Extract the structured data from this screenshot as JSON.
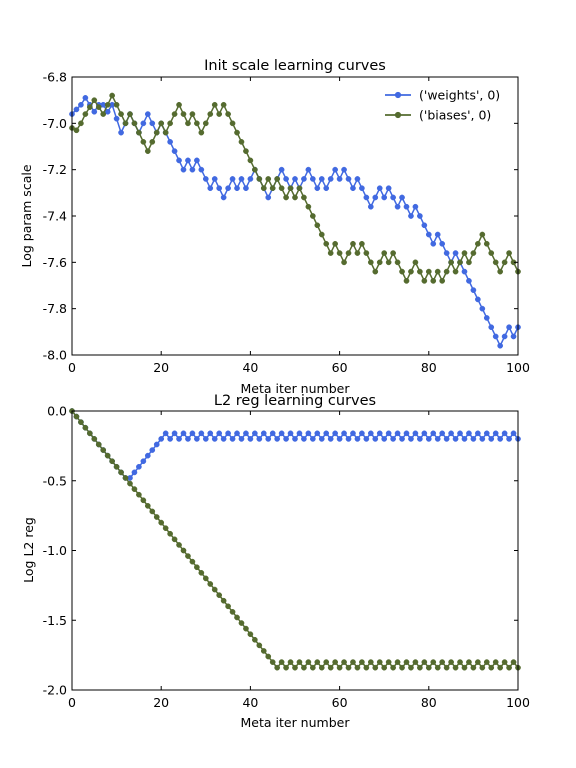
{
  "chart_data": [
    {
      "type": "line",
      "title": "Init scale learning curves",
      "xlabel": "Meta iter number",
      "ylabel": "Log param scale",
      "xlim": [
        0,
        100
      ],
      "ylim": [
        -8.0,
        -6.8
      ],
      "xticks": [
        0,
        20,
        40,
        60,
        80,
        100
      ],
      "xtick_labels": [
        "0",
        "20",
        "40",
        "60",
        "80",
        "100"
      ],
      "yticks": [
        -8.0,
        -7.8,
        -7.6,
        -7.4,
        -7.2,
        -7.0,
        -6.8
      ],
      "ytick_labels": [
        "-8.0",
        "-7.8",
        "-7.6",
        "-7.4",
        "-7.2",
        "-7.0",
        "-6.8"
      ],
      "grid": false,
      "legend": "top-right",
      "series": [
        {
          "name": "('weights', 0)",
          "color": "#4169e1",
          "marker": "circle",
          "x": [
            0,
            1,
            2,
            3,
            4,
            5,
            6,
            7,
            8,
            9,
            10,
            11,
            12,
            13,
            14,
            15,
            16,
            17,
            18,
            19,
            20,
            21,
            22,
            23,
            24,
            25,
            26,
            27,
            28,
            29,
            30,
            31,
            32,
            33,
            34,
            35,
            36,
            37,
            38,
            39,
            40,
            41,
            42,
            43,
            44,
            45,
            46,
            47,
            48,
            49,
            50,
            51,
            52,
            53,
            54,
            55,
            56,
            57,
            58,
            59,
            60,
            61,
            62,
            63,
            64,
            65,
            66,
            67,
            68,
            69,
            70,
            71,
            72,
            73,
            74,
            75,
            76,
            77,
            78,
            79,
            80,
            81,
            82,
            83,
            84,
            85,
            86,
            87,
            88,
            89,
            90,
            91,
            92,
            93,
            94,
            95,
            96,
            97,
            98,
            99,
            100
          ],
          "values": [
            -6.96,
            -6.94,
            -6.92,
            -6.89,
            -6.92,
            -6.95,
            -6.92,
            -6.92,
            -6.95,
            -6.92,
            -6.98,
            -7.04,
            -7.0,
            -6.96,
            -7.0,
            -7.04,
            -7.0,
            -6.96,
            -7.0,
            -7.04,
            -7.0,
            -7.04,
            -7.08,
            -7.12,
            -7.16,
            -7.2,
            -7.16,
            -7.2,
            -7.16,
            -7.2,
            -7.24,
            -7.28,
            -7.24,
            -7.28,
            -7.32,
            -7.28,
            -7.24,
            -7.28,
            -7.24,
            -7.28,
            -7.24,
            -7.2,
            -7.24,
            -7.28,
            -7.32,
            -7.28,
            -7.24,
            -7.2,
            -7.24,
            -7.28,
            -7.24,
            -7.28,
            -7.24,
            -7.2,
            -7.24,
            -7.28,
            -7.24,
            -7.28,
            -7.24,
            -7.2,
            -7.24,
            -7.2,
            -7.24,
            -7.28,
            -7.24,
            -7.28,
            -7.32,
            -7.36,
            -7.32,
            -7.28,
            -7.32,
            -7.28,
            -7.32,
            -7.36,
            -7.32,
            -7.36,
            -7.4,
            -7.36,
            -7.4,
            -7.44,
            -7.48,
            -7.52,
            -7.48,
            -7.52,
            -7.56,
            -7.6,
            -7.56,
            -7.6,
            -7.64,
            -7.68,
            -7.72,
            -7.76,
            -7.8,
            -7.84,
            -7.88,
            -7.92,
            -7.96,
            -7.92,
            -7.88,
            -7.92,
            -7.88
          ]
        },
        {
          "name": "('biases', 0)",
          "color": "#556b2f",
          "marker": "circle",
          "x": [
            0,
            1,
            2,
            3,
            4,
            5,
            6,
            7,
            8,
            9,
            10,
            11,
            12,
            13,
            14,
            15,
            16,
            17,
            18,
            19,
            20,
            21,
            22,
            23,
            24,
            25,
            26,
            27,
            28,
            29,
            30,
            31,
            32,
            33,
            34,
            35,
            36,
            37,
            38,
            39,
            40,
            41,
            42,
            43,
            44,
            45,
            46,
            47,
            48,
            49,
            50,
            51,
            52,
            53,
            54,
            55,
            56,
            57,
            58,
            59,
            60,
            61,
            62,
            63,
            64,
            65,
            66,
            67,
            68,
            69,
            70,
            71,
            72,
            73,
            74,
            75,
            76,
            77,
            78,
            79,
            80,
            81,
            82,
            83,
            84,
            85,
            86,
            87,
            88,
            89,
            90,
            91,
            92,
            93,
            94,
            95,
            96,
            97,
            98,
            99,
            100
          ],
          "values": [
            -7.02,
            -7.03,
            -7.0,
            -6.96,
            -6.93,
            -6.9,
            -6.93,
            -6.96,
            -6.92,
            -6.88,
            -6.92,
            -6.96,
            -7.0,
            -6.96,
            -7.0,
            -7.04,
            -7.08,
            -7.12,
            -7.08,
            -7.04,
            -7.0,
            -7.04,
            -7.0,
            -6.96,
            -6.92,
            -6.96,
            -7.0,
            -6.96,
            -7.0,
            -7.04,
            -7.0,
            -6.96,
            -6.92,
            -6.96,
            -6.92,
            -6.96,
            -7.0,
            -7.04,
            -7.08,
            -7.12,
            -7.16,
            -7.2,
            -7.24,
            -7.28,
            -7.24,
            -7.28,
            -7.24,
            -7.28,
            -7.32,
            -7.28,
            -7.32,
            -7.28,
            -7.32,
            -7.36,
            -7.4,
            -7.44,
            -7.48,
            -7.52,
            -7.56,
            -7.52,
            -7.56,
            -7.6,
            -7.56,
            -7.52,
            -7.56,
            -7.52,
            -7.56,
            -7.6,
            -7.64,
            -7.6,
            -7.56,
            -7.6,
            -7.56,
            -7.6,
            -7.64,
            -7.68,
            -7.64,
            -7.6,
            -7.64,
            -7.68,
            -7.64,
            -7.68,
            -7.64,
            -7.68,
            -7.64,
            -7.6,
            -7.64,
            -7.6,
            -7.56,
            -7.6,
            -7.56,
            -7.52,
            -7.48,
            -7.52,
            -7.56,
            -7.6,
            -7.64,
            -7.6,
            -7.56,
            -7.6,
            -7.64
          ]
        }
      ]
    },
    {
      "type": "line",
      "title": "L2 reg learning curves",
      "xlabel": "Meta iter number",
      "ylabel": "Log L2 reg",
      "xlim": [
        0,
        100
      ],
      "ylim": [
        -2.0,
        0.0
      ],
      "xticks": [
        0,
        20,
        40,
        60,
        80,
        100
      ],
      "xtick_labels": [
        "0",
        "20",
        "40",
        "60",
        "80",
        "100"
      ],
      "yticks": [
        -2.0,
        -1.5,
        -1.0,
        -0.5,
        0.0
      ],
      "ytick_labels": [
        "-2.0",
        "-1.5",
        "-1.0",
        "-0.5",
        "0.0"
      ],
      "grid": false,
      "legend": "none",
      "series": [
        {
          "color": "#4169e1",
          "marker": "circle",
          "x": [
            0,
            1,
            2,
            3,
            4,
            5,
            6,
            7,
            8,
            9,
            10,
            11,
            12,
            13,
            14,
            15,
            16,
            17,
            18,
            19,
            20,
            21,
            22,
            23,
            24,
            25,
            26,
            27,
            28,
            29,
            30,
            31,
            32,
            33,
            34,
            35,
            36,
            37,
            38,
            39,
            40,
            41,
            42,
            43,
            44,
            45,
            46,
            47,
            48,
            49,
            50,
            51,
            52,
            53,
            54,
            55,
            56,
            57,
            58,
            59,
            60,
            61,
            62,
            63,
            64,
            65,
            66,
            67,
            68,
            69,
            70,
            71,
            72,
            73,
            74,
            75,
            76,
            77,
            78,
            79,
            80,
            81,
            82,
            83,
            84,
            85,
            86,
            87,
            88,
            89,
            90,
            91,
            92,
            93,
            94,
            95,
            96,
            97,
            98,
            99,
            100
          ],
          "values": [
            0.0,
            -0.04,
            -0.08,
            -0.12,
            -0.16,
            -0.2,
            -0.24,
            -0.28,
            -0.32,
            -0.36,
            -0.4,
            -0.44,
            -0.48,
            -0.48,
            -0.44,
            -0.4,
            -0.36,
            -0.32,
            -0.28,
            -0.24,
            -0.2,
            -0.16,
            -0.2,
            -0.16,
            -0.2,
            -0.16,
            -0.2,
            -0.16,
            -0.2,
            -0.16,
            -0.2,
            -0.16,
            -0.2,
            -0.16,
            -0.2,
            -0.16,
            -0.2,
            -0.16,
            -0.2,
            -0.16,
            -0.2,
            -0.16,
            -0.2,
            -0.16,
            -0.2,
            -0.16,
            -0.2,
            -0.16,
            -0.2,
            -0.16,
            -0.2,
            -0.16,
            -0.2,
            -0.16,
            -0.2,
            -0.16,
            -0.2,
            -0.16,
            -0.2,
            -0.16,
            -0.2,
            -0.16,
            -0.2,
            -0.16,
            -0.2,
            -0.16,
            -0.2,
            -0.16,
            -0.2,
            -0.16,
            -0.2,
            -0.16,
            -0.2,
            -0.16,
            -0.2,
            -0.16,
            -0.2,
            -0.16,
            -0.2,
            -0.16,
            -0.2,
            -0.16,
            -0.2,
            -0.16,
            -0.2,
            -0.16,
            -0.2,
            -0.16,
            -0.2,
            -0.16,
            -0.2,
            -0.16,
            -0.2,
            -0.16,
            -0.2,
            -0.16,
            -0.2,
            -0.16,
            -0.2,
            -0.16,
            -0.2
          ]
        },
        {
          "color": "#556b2f",
          "marker": "circle",
          "x": [
            0,
            1,
            2,
            3,
            4,
            5,
            6,
            7,
            8,
            9,
            10,
            11,
            12,
            13,
            14,
            15,
            16,
            17,
            18,
            19,
            20,
            21,
            22,
            23,
            24,
            25,
            26,
            27,
            28,
            29,
            30,
            31,
            32,
            33,
            34,
            35,
            36,
            37,
            38,
            39,
            40,
            41,
            42,
            43,
            44,
            45,
            46,
            47,
            48,
            49,
            50,
            51,
            52,
            53,
            54,
            55,
            56,
            57,
            58,
            59,
            60,
            61,
            62,
            63,
            64,
            65,
            66,
            67,
            68,
            69,
            70,
            71,
            72,
            73,
            74,
            75,
            76,
            77,
            78,
            79,
            80,
            81,
            82,
            83,
            84,
            85,
            86,
            87,
            88,
            89,
            90,
            91,
            92,
            93,
            94,
            95,
            96,
            97,
            98,
            99,
            100
          ],
          "values": [
            0.0,
            -0.04,
            -0.08,
            -0.12,
            -0.16,
            -0.2,
            -0.24,
            -0.28,
            -0.32,
            -0.36,
            -0.4,
            -0.44,
            -0.48,
            -0.52,
            -0.56,
            -0.6,
            -0.64,
            -0.68,
            -0.72,
            -0.76,
            -0.8,
            -0.84,
            -0.88,
            -0.92,
            -0.96,
            -1.0,
            -1.04,
            -1.08,
            -1.12,
            -1.16,
            -1.2,
            -1.24,
            -1.28,
            -1.32,
            -1.36,
            -1.4,
            -1.44,
            -1.48,
            -1.52,
            -1.56,
            -1.6,
            -1.64,
            -1.68,
            -1.72,
            -1.76,
            -1.8,
            -1.84,
            -1.8,
            -1.84,
            -1.8,
            -1.84,
            -1.8,
            -1.84,
            -1.8,
            -1.84,
            -1.8,
            -1.84,
            -1.8,
            -1.84,
            -1.8,
            -1.84,
            -1.8,
            -1.84,
            -1.8,
            -1.84,
            -1.8,
            -1.84,
            -1.8,
            -1.84,
            -1.8,
            -1.84,
            -1.8,
            -1.84,
            -1.8,
            -1.84,
            -1.8,
            -1.84,
            -1.8,
            -1.84,
            -1.8,
            -1.84,
            -1.8,
            -1.84,
            -1.8,
            -1.84,
            -1.8,
            -1.84,
            -1.8,
            -1.84,
            -1.8,
            -1.84,
            -1.8,
            -1.84,
            -1.8,
            -1.84,
            -1.8,
            -1.84,
            -1.8,
            -1.84,
            -1.8,
            -1.84
          ]
        }
      ]
    }
  ]
}
